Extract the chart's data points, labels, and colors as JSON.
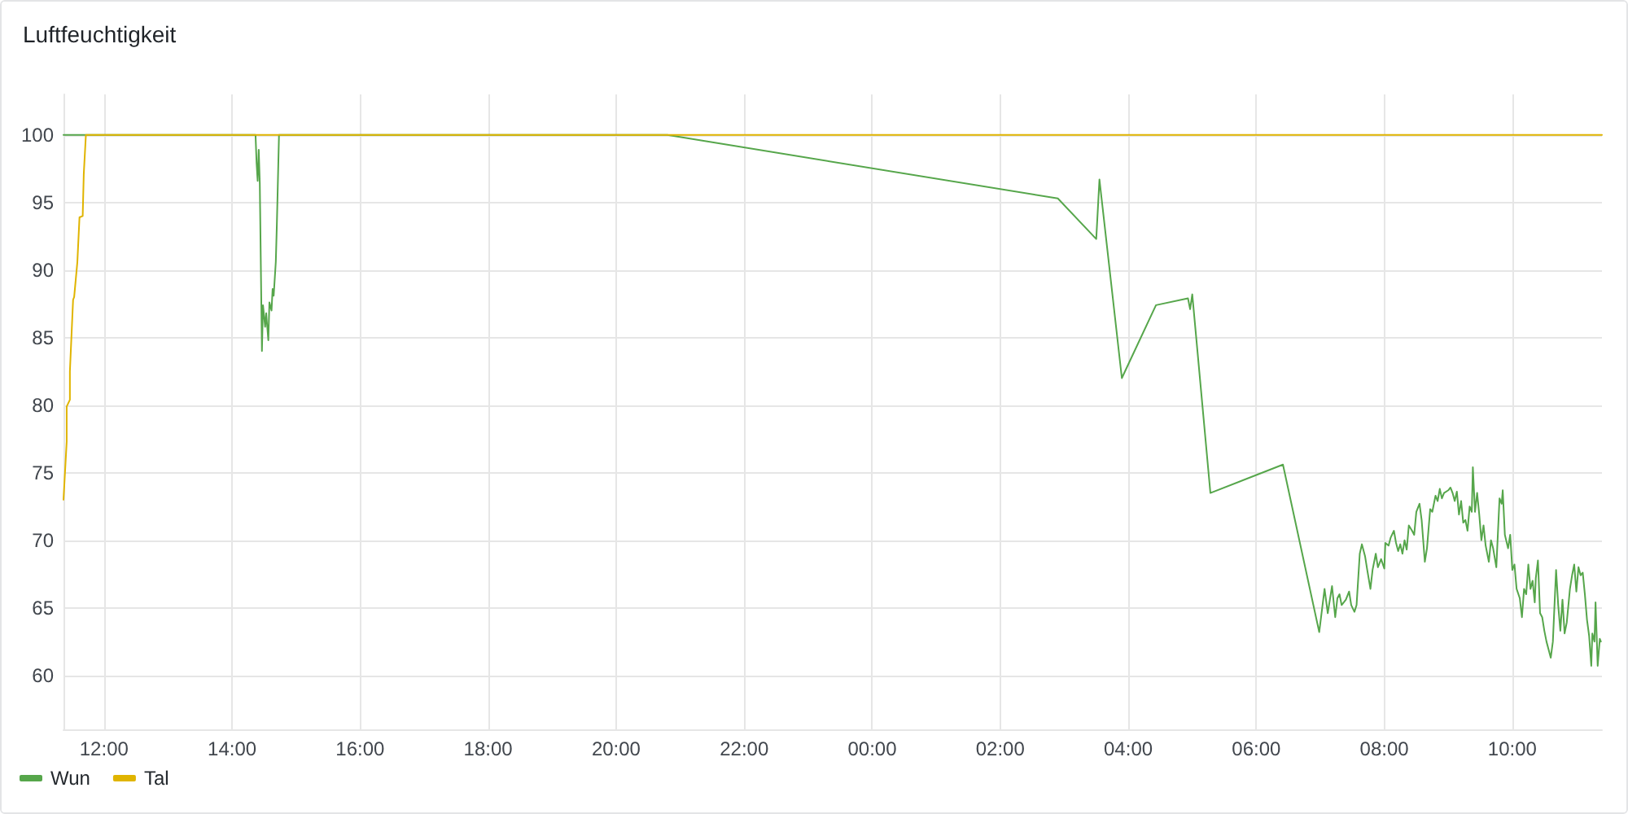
{
  "chart_data": {
    "type": "line",
    "title": "Luftfeuchtigkeit",
    "xlim": [
      "--01-01T11:22",
      "--01-02T11:24"
    ],
    "xticks": [
      {
        "value": "--01-01T12:00",
        "label": "12:00"
      },
      {
        "value": "--01-01T14:00",
        "label": "14:00"
      },
      {
        "value": "--01-01T16:00",
        "label": "16:00"
      },
      {
        "value": "--01-01T18:00",
        "label": "18:00"
      },
      {
        "value": "--01-01T20:00",
        "label": "20:00"
      },
      {
        "value": "--01-01T22:00",
        "label": "22:00"
      },
      {
        "value": "--01-02T00:00",
        "label": "00:00"
      },
      {
        "value": "--01-02T02:00",
        "label": "02:00"
      },
      {
        "value": "--01-02T04:00",
        "label": "04:00"
      },
      {
        "value": "--01-02T06:00",
        "label": "06:00"
      },
      {
        "value": "--01-02T08:00",
        "label": "08:00"
      },
      {
        "value": "--01-02T10:00",
        "label": "10:00"
      }
    ],
    "ylim": [
      56,
      103
    ],
    "yticks": [
      60,
      65,
      70,
      75,
      80,
      85,
      90,
      95,
      100
    ],
    "grid": true,
    "legend": "bottom left",
    "marker": "none",
    "line_style": "solid",
    "series": [
      {
        "name": "Wun",
        "color": "#56a64b",
        "x": [
          "--01-01T11:22",
          "--01-01T14:22",
          "--01-01T14:23",
          "--01-01T14:24",
          "--01-01T14:25",
          "--01-01T14:26",
          "--01-01T14:28",
          "--01-01T14:29",
          "--01-01T14:31",
          "--01-01T14:32",
          "--01-01T14:34",
          "--01-01T14:35",
          "--01-01T14:37",
          "--01-01T14:38",
          "--01-01T14:39",
          "--01-01T14:41",
          "--01-01T14:42",
          "--01-01T14:44",
          "--01-01T20:48",
          "--01-02T02:54",
          "--01-02T03:30",
          "--01-02T03:33",
          "--01-02T03:54",
          "--01-02T04:26",
          "--01-02T04:56",
          "--01-02T04:58",
          "--01-02T05:00",
          "--01-02T05:17",
          "--01-02T06:25",
          "--01-02T06:59",
          "--01-02T07:04",
          "--01-02T07:07",
          "--01-02T07:09",
          "--01-02T07:11",
          "--01-02T07:14",
          "--01-02T07:16",
          "--01-02T07:18",
          "--01-02T07:20",
          "--01-02T07:24",
          "--01-02T07:27",
          "--01-02T07:29",
          "--01-02T07:32",
          "--01-02T07:34",
          "--01-02T07:37",
          "--01-02T07:39",
          "--01-02T07:42",
          "--01-02T07:44",
          "--01-02T07:47",
          "--01-02T07:49",
          "--01-02T07:52",
          "--01-02T07:54",
          "--01-02T07:57",
          "--01-02T08:00",
          "--01-02T08:01",
          "--01-02T08:04",
          "--01-02T08:06",
          "--01-02T08:09",
          "--01-02T08:11",
          "--01-02T08:13",
          "--01-02T08:15",
          "--01-02T08:17",
          "--01-02T08:19",
          "--01-02T08:21",
          "--01-02T08:23",
          "--01-02T08:26",
          "--01-02T08:28",
          "--01-02T08:30",
          "--01-02T08:33",
          "--01-02T08:35",
          "--01-02T08:38",
          "--01-02T08:40",
          "--01-02T08:43",
          "--01-02T08:45",
          "--01-02T08:48",
          "--01-02T08:50",
          "--01-02T08:52",
          "--01-02T08:54",
          "--01-02T08:56",
          "--01-02T09:00",
          "--01-02T09:02",
          "--01-02T09:04",
          "--01-02T09:06",
          "--01-02T09:08",
          "--01-02T09:10",
          "--01-02T09:12",
          "--01-02T09:14",
          "--01-02T09:16",
          "--01-02T09:18",
          "--01-02T09:20",
          "--01-02T09:22",
          "--01-02T09:23",
          "--01-02T09:25",
          "--01-02T09:27",
          "--01-02T09:29",
          "--01-02T09:31",
          "--01-02T09:33",
          "--01-02T09:35",
          "--01-02T09:38",
          "--01-02T09:40",
          "--01-02T09:42",
          "--01-02T09:45",
          "--01-02T09:48",
          "--01-02T09:50",
          "--01-02T09:51",
          "--01-02T09:53",
          "--01-02T09:56",
          "--01-02T09:58",
          "--01-02T10:00",
          "--01-02T10:02",
          "--01-02T10:04",
          "--01-02T10:07",
          "--01-02T10:09",
          "--01-02T10:11",
          "--01-02T10:13",
          "--01-02T10:15",
          "--01-02T10:17",
          "--01-02T10:19",
          "--01-02T10:21",
          "--01-02T10:22",
          "--01-02T10:24",
          "--01-02T10:26",
          "--01-02T10:28",
          "--01-02T10:30",
          "--01-02T10:32",
          "--01-02T10:34",
          "--01-02T10:36",
          "--01-02T10:38",
          "--01-02T10:41",
          "--01-02T10:43",
          "--01-02T10:45",
          "--01-02T10:47",
          "--01-02T10:49",
          "--01-02T10:51",
          "--01-02T10:54",
          "--01-02T10:56",
          "--01-02T10:58",
          "--01-02T11:00",
          "--01-02T11:02",
          "--01-02T11:04",
          "--01-02T11:06",
          "--01-02T11:08",
          "--01-02T11:10",
          "--01-02T11:12",
          "--01-02T11:14",
          "--01-02T11:15",
          "--01-02T11:17",
          "--01-02T11:18",
          "--01-02T11:20",
          "--01-02T11:22",
          "--01-02T11:23"
        ],
        "values": [
          100,
          100,
          97.9,
          96.6,
          98.9,
          96.4,
          84.0,
          87.4,
          85.8,
          86.8,
          84.8,
          87.6,
          87.0,
          88.6,
          88.1,
          90.6,
          93.4,
          100,
          100,
          95.3,
          92.3,
          96.7,
          82.0,
          87.4,
          87.9,
          87.1,
          88.2,
          73.5,
          75.6,
          63.2,
          66.4,
          64.6,
          65.6,
          66.6,
          64.3,
          65.7,
          66.0,
          65.2,
          65.6,
          66.2,
          65.2,
          64.7,
          65.2,
          69.0,
          69.7,
          68.8,
          67.8,
          66.4,
          67.8,
          69.0,
          68.0,
          68.6,
          67.9,
          69.8,
          69.6,
          70.2,
          70.7,
          69.8,
          69.2,
          69.7,
          69.0,
          70.0,
          69.3,
          71.1,
          70.7,
          70.4,
          72.1,
          72.7,
          71.5,
          68.4,
          69.4,
          72.3,
          72.1,
          73.3,
          72.9,
          73.8,
          73.1,
          73.5,
          73.7,
          73.9,
          73.5,
          72.9,
          73.6,
          71.9,
          72.9,
          71.3,
          71.5,
          70.7,
          72.5,
          72.1,
          75.4,
          72.1,
          73.5,
          71.9,
          70.0,
          71.1,
          69.6,
          68.4,
          70.0,
          69.4,
          68.0,
          73.1,
          72.7,
          73.7,
          70.4,
          69.4,
          70.4,
          67.8,
          68.2,
          66.4,
          65.7,
          64.3,
          66.4,
          66.0,
          68.2,
          66.4,
          67.0,
          65.4,
          67.2,
          68.5,
          64.6,
          64.3,
          63.3,
          62.5,
          61.9,
          61.3,
          62.5,
          67.8,
          65.2,
          63.3,
          65.6,
          63.1,
          63.9,
          66.4,
          67.4,
          68.2,
          66.2,
          68.0,
          67.4,
          67.6,
          66.0,
          64.1,
          62.9,
          60.7,
          63.1,
          62.5,
          65.4,
          60.7,
          62.7,
          62.5
        ]
      },
      {
        "name": "Tal",
        "color": "#e0b400",
        "x": [
          "--01-01T11:22",
          "--01-01T11:25",
          "--01-01T11:25",
          "--01-01T11:28",
          "--01-01T11:28",
          "--01-01T11:31",
          "--01-01T11:32",
          "--01-01T11:35",
          "--01-01T11:37",
          "--01-01T11:40",
          "--01-01T11:41",
          "--01-01T11:43",
          "--01-02T11:24"
        ],
        "values": [
          73.0,
          77.3,
          79.9,
          80.4,
          82.5,
          87.8,
          88.0,
          90.6,
          93.9,
          94.0,
          97.1,
          100,
          100
        ]
      }
    ]
  }
}
